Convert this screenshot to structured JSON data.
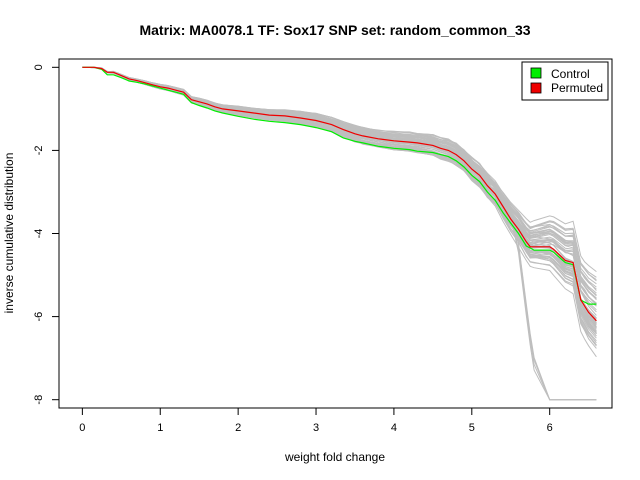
{
  "chart_data": {
    "type": "line",
    "title": "Matrix: MA0078.1 TF: Sox17 SNP set: random_common_33",
    "xlabel": "weight fold change",
    "ylabel": "inverse cumulative distribution",
    "xlim": [
      -0.3,
      6.8
    ],
    "ylim": [
      -8.2,
      0.2
    ],
    "x_ticks": [
      0,
      1,
      2,
      3,
      4,
      5,
      6
    ],
    "y_ticks": [
      0,
      -2,
      -4,
      -6,
      -8
    ],
    "grid": false,
    "legend": {
      "placement": "top-right",
      "entries": [
        {
          "label": "Control",
          "color": "#00ee00"
        },
        {
          "label": "Permuted",
          "color": "#ee0000"
        }
      ]
    },
    "series": [
      {
        "name": "Control",
        "color": "#00ee00",
        "x": [
          0,
          0.15,
          0.25,
          0.32,
          0.4,
          0.5,
          0.6,
          0.7,
          0.8,
          0.9,
          1.0,
          1.1,
          1.2,
          1.3,
          1.4,
          1.5,
          1.6,
          1.7,
          1.8,
          2.0,
          2.2,
          2.4,
          2.6,
          2.8,
          3.0,
          3.2,
          3.35,
          3.5,
          3.6,
          3.8,
          4.0,
          4.2,
          4.3,
          4.5,
          4.6,
          4.7,
          4.8,
          4.9,
          5.0,
          5.1,
          5.2,
          5.3,
          5.4,
          5.5,
          5.6,
          5.7,
          5.75,
          5.8,
          6.0,
          6.05,
          6.2,
          6.3,
          6.4,
          6.45,
          6.5,
          6.6
        ],
        "y": [
          0,
          0,
          -0.05,
          -0.18,
          -0.18,
          -0.25,
          -0.33,
          -0.36,
          -0.4,
          -0.45,
          -0.5,
          -0.55,
          -0.6,
          -0.65,
          -0.85,
          -0.92,
          -0.98,
          -1.05,
          -1.1,
          -1.18,
          -1.25,
          -1.3,
          -1.33,
          -1.38,
          -1.45,
          -1.55,
          -1.7,
          -1.78,
          -1.82,
          -1.9,
          -1.95,
          -1.98,
          -2.02,
          -2.05,
          -2.1,
          -2.15,
          -2.25,
          -2.4,
          -2.6,
          -2.75,
          -3.0,
          -3.2,
          -3.5,
          -3.75,
          -4.0,
          -4.3,
          -4.35,
          -4.4,
          -4.4,
          -4.45,
          -4.7,
          -4.75,
          -5.6,
          -5.65,
          -5.7,
          -5.7
        ]
      },
      {
        "name": "Permuted",
        "color": "#ee0000",
        "x": [
          0,
          0.15,
          0.25,
          0.32,
          0.4,
          0.5,
          0.6,
          0.7,
          0.8,
          0.9,
          1.0,
          1.1,
          1.2,
          1.3,
          1.4,
          1.5,
          1.6,
          1.7,
          1.8,
          2.0,
          2.2,
          2.4,
          2.6,
          2.8,
          3.0,
          3.2,
          3.35,
          3.5,
          3.6,
          3.8,
          4.0,
          4.2,
          4.3,
          4.5,
          4.6,
          4.7,
          4.8,
          4.9,
          5.0,
          5.1,
          5.2,
          5.3,
          5.4,
          5.5,
          5.6,
          5.7,
          5.75,
          5.8,
          6.0,
          6.05,
          6.2,
          6.3,
          6.4,
          6.45,
          6.5,
          6.6
        ],
        "y": [
          0,
          0,
          -0.03,
          -0.12,
          -0.12,
          -0.2,
          -0.28,
          -0.32,
          -0.37,
          -0.42,
          -0.47,
          -0.5,
          -0.55,
          -0.6,
          -0.78,
          -0.83,
          -0.88,
          -0.95,
          -1.0,
          -1.05,
          -1.1,
          -1.15,
          -1.17,
          -1.22,
          -1.28,
          -1.38,
          -1.5,
          -1.6,
          -1.65,
          -1.72,
          -1.77,
          -1.8,
          -1.82,
          -1.88,
          -1.95,
          -2.0,
          -2.1,
          -2.25,
          -2.45,
          -2.6,
          -2.85,
          -3.05,
          -3.35,
          -3.65,
          -3.9,
          -4.2,
          -4.32,
          -4.32,
          -4.32,
          -4.38,
          -4.65,
          -4.7,
          -5.6,
          -5.75,
          -5.9,
          -6.1
        ]
      }
    ],
    "background_series_note": "",
    "background_color": "#bebebe"
  }
}
